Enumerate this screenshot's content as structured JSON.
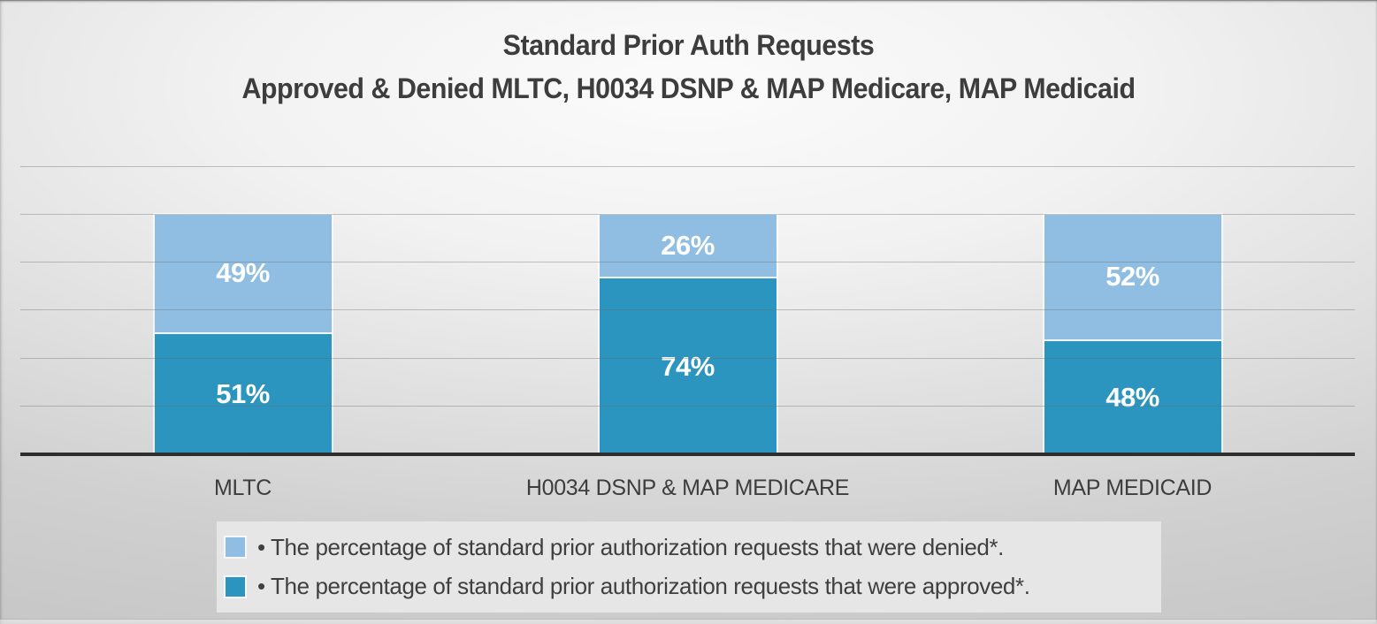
{
  "title": {
    "line1": "Standard Prior Auth Requests",
    "line2": "Approved & Denied MLTC, H0034 DSNP & MAP Medicare, MAP Medicaid"
  },
  "chart_data": {
    "type": "bar",
    "subtype": "stacked-percentage",
    "title": "Standard Prior Auth Requests Approved & Denied MLTC, H0034 DSNP & MAP Medicare, MAP Medicaid",
    "categories": [
      "MLTC",
      "H0034 DSNP & MAP MEDICARE",
      "MAP MEDICAID"
    ],
    "series": [
      {
        "name": "approved",
        "stack_position": "bottom",
        "values": [
          51,
          74,
          48
        ],
        "color": "#2B95BF"
      },
      {
        "name": "denied",
        "stack_position": "top",
        "values": [
          49,
          26,
          52
        ],
        "color": "#90BEE2"
      }
    ],
    "data_labels": {
      "format": "{value}%",
      "color": "#FFFFFF",
      "visible": true
    },
    "xlabel": "",
    "ylabel": "",
    "ylim": [
      0,
      120
    ],
    "gridline_step": 20,
    "grid": true,
    "y_axis_tick_labels_visible": false,
    "legend_position": "bottom"
  },
  "legend": {
    "items": [
      {
        "series": "denied",
        "color": "#90BEE2",
        "label": "• The percentage of standard prior authorization requests that were denied*."
      },
      {
        "series": "approved",
        "color": "#2B95BF",
        "label": "• The percentage of standard prior authorization requests that were approved*."
      }
    ]
  }
}
